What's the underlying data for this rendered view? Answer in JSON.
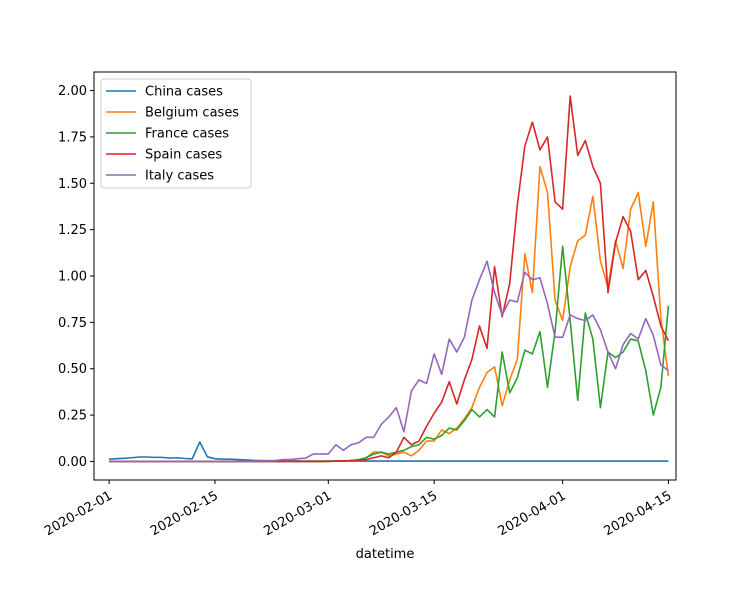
{
  "chart_data": {
    "type": "line",
    "title": "",
    "xlabel": "datetime",
    "ylabel": "",
    "x_start": "2020-02-01",
    "x_end": "2020-04-15",
    "xlim": [
      "2020-01-30",
      "2020-04-16"
    ],
    "ylim": [
      -0.1,
      2.1
    ],
    "x_ticks": [
      "2020-02-01",
      "2020-02-15",
      "2020-03-01",
      "2020-03-15",
      "2020-04-01",
      "2020-04-15"
    ],
    "y_ticks": [
      "0.00",
      "0.25",
      "0.50",
      "0.75",
      "1.00",
      "1.25",
      "1.50",
      "1.75",
      "2.00"
    ],
    "grid": false,
    "legend_position": "top-left",
    "series": [
      {
        "name": "China cases",
        "color": "#1f77b4",
        "values": [
          0.012,
          0.015,
          0.017,
          0.02,
          0.024,
          0.024,
          0.022,
          0.022,
          0.018,
          0.02,
          0.016,
          0.014,
          0.105,
          0.025,
          0.015,
          0.012,
          0.012,
          0.01,
          0.008,
          0.006,
          0.005,
          0.004,
          0.004,
          0.003,
          0.003,
          0.003,
          0.002,
          0.002,
          0.002,
          0.002,
          0.002,
          0.002,
          0.002,
          0.002,
          0.002,
          0.002,
          0.002,
          0.002,
          0.002,
          0.002,
          0.002,
          0.002,
          0.002,
          0.002,
          0.002,
          0.002,
          0.002,
          0.002,
          0.002,
          0.002,
          0.002,
          0.002,
          0.002,
          0.002,
          0.002,
          0.002,
          0.002,
          0.002,
          0.002,
          0.002,
          0.002,
          0.002,
          0.002,
          0.002,
          0.002,
          0.002,
          0.002,
          0.002,
          0.002,
          0.002,
          0.002,
          0.002,
          0.002,
          0.002,
          0.002
        ]
      },
      {
        "name": "Belgium cases",
        "color": "#ff7f0e",
        "values": [
          0,
          0,
          0,
          0,
          0,
          0,
          0,
          0,
          0,
          0,
          0,
          0,
          0,
          0,
          0,
          0,
          0,
          0,
          0,
          0,
          0,
          0,
          0,
          0,
          0,
          0,
          0,
          0,
          0,
          0,
          0.002,
          0.002,
          0.005,
          0.005,
          0.02,
          0.05,
          0.05,
          0.03,
          0.04,
          0.05,
          0.03,
          0.06,
          0.11,
          0.11,
          0.17,
          0.15,
          0.18,
          0.23,
          0.29,
          0.4,
          0.48,
          0.51,
          0.3,
          0.44,
          0.55,
          1.12,
          0.91,
          1.59,
          1.45,
          0.87,
          0.76,
          1.05,
          1.19,
          1.22,
          1.43,
          1.08,
          0.94,
          1.19,
          1.04,
          1.36,
          1.45,
          1.16,
          1.4,
          0.77,
          0.46
        ]
      },
      {
        "name": "France cases",
        "color": "#2ca02c",
        "values": [
          0,
          0,
          0,
          0,
          0,
          0,
          0,
          0,
          0,
          0,
          0,
          0,
          0,
          0,
          0,
          0,
          0,
          0,
          0,
          0,
          0,
          0,
          0,
          0,
          0,
          0,
          0,
          0,
          0,
          0.002,
          0.002,
          0.002,
          0.005,
          0.01,
          0.02,
          0.04,
          0.05,
          0.04,
          0.05,
          0.06,
          0.08,
          0.09,
          0.13,
          0.12,
          0.14,
          0.18,
          0.17,
          0.22,
          0.28,
          0.24,
          0.28,
          0.24,
          0.59,
          0.37,
          0.45,
          0.6,
          0.58,
          0.7,
          0.4,
          0.7,
          1.16,
          0.76,
          0.33,
          0.8,
          0.66,
          0.29,
          0.59,
          0.56,
          0.59,
          0.66,
          0.65,
          0.49,
          0.25,
          0.4,
          0.84
        ]
      },
      {
        "name": "Spain cases",
        "color": "#d62728",
        "values": [
          0,
          0,
          0,
          0,
          0,
          0,
          0,
          0,
          0,
          0,
          0,
          0,
          0,
          0,
          0,
          0,
          0,
          0,
          0,
          0,
          0,
          0,
          0,
          0,
          0,
          0,
          0,
          0,
          0,
          0,
          0.002,
          0.002,
          0.005,
          0.005,
          0.01,
          0.02,
          0.03,
          0.02,
          0.05,
          0.13,
          0.09,
          0.11,
          0.19,
          0.26,
          0.32,
          0.43,
          0.31,
          0.44,
          0.55,
          0.73,
          0.61,
          1.05,
          0.78,
          0.96,
          1.38,
          1.7,
          1.83,
          1.68,
          1.75,
          1.4,
          1.36,
          1.97,
          1.65,
          1.73,
          1.59,
          1.5,
          0.91,
          1.18,
          1.32,
          1.24,
          0.98,
          1.03,
          0.89,
          0.73,
          0.65
        ]
      },
      {
        "name": "Italy cases",
        "color": "#9467bd",
        "values": [
          0,
          0,
          0,
          0,
          0,
          0,
          0,
          0,
          0,
          0,
          0,
          0,
          0,
          0,
          0,
          0,
          0,
          0,
          0,
          0,
          0.003,
          0.003,
          0.005,
          0.01,
          0.01,
          0.015,
          0.018,
          0.04,
          0.04,
          0.04,
          0.09,
          0.06,
          0.09,
          0.1,
          0.13,
          0.13,
          0.2,
          0.24,
          0.29,
          0.16,
          0.38,
          0.44,
          0.42,
          0.58,
          0.47,
          0.66,
          0.59,
          0.67,
          0.87,
          0.98,
          1.08,
          0.91,
          0.79,
          0.87,
          0.86,
          1.02,
          0.98,
          0.99,
          0.85,
          0.67,
          0.67,
          0.79,
          0.77,
          0.76,
          0.79,
          0.71,
          0.59,
          0.5,
          0.63,
          0.69,
          0.66,
          0.77,
          0.68,
          0.52,
          0.49
        ]
      }
    ]
  }
}
